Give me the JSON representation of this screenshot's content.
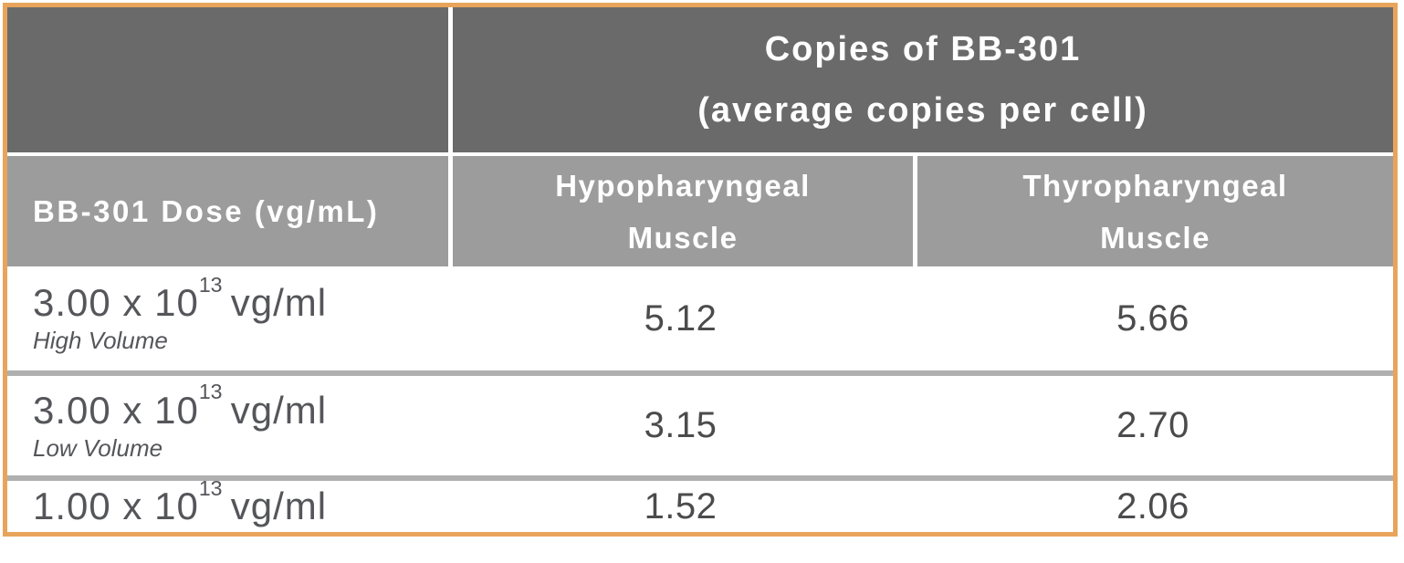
{
  "palette": {
    "border_orange": "#E8A45B",
    "header_dark_gray": "#6A6A6A",
    "header_light_gray": "#9C9C9C",
    "row_divider_gray": "#B0B0B0",
    "header_text": "#FFFFFF",
    "body_text": "#55565A",
    "value_text": "#4B4B4D"
  },
  "chart_data": {
    "type": "table",
    "title_line1": "Copies of BB-301",
    "title_line2": "(average copies per cell)",
    "row_header": "BB-301 Dose (vg/mL)",
    "columns": [
      {
        "line1": "Hypopharyngeal",
        "line2": "Muscle"
      },
      {
        "line1": "Thyropharyngeal",
        "line2": "Muscle"
      }
    ],
    "rows": [
      {
        "dose_mantissa": "3.00 x 10",
        "dose_exponent": "13",
        "dose_unit": "vg/ml",
        "volume_note": "High Volume",
        "values": [
          "5.12",
          "5.66"
        ]
      },
      {
        "dose_mantissa": "3.00 x 10",
        "dose_exponent": "13",
        "dose_unit": "vg/ml",
        "volume_note": "Low Volume",
        "values": [
          "3.15",
          "2.70"
        ]
      },
      {
        "dose_mantissa": "1.00 x 10",
        "dose_exponent": "13",
        "dose_unit": "vg/ml",
        "volume_note": "",
        "values": [
          "1.52",
          "2.06"
        ]
      }
    ]
  }
}
